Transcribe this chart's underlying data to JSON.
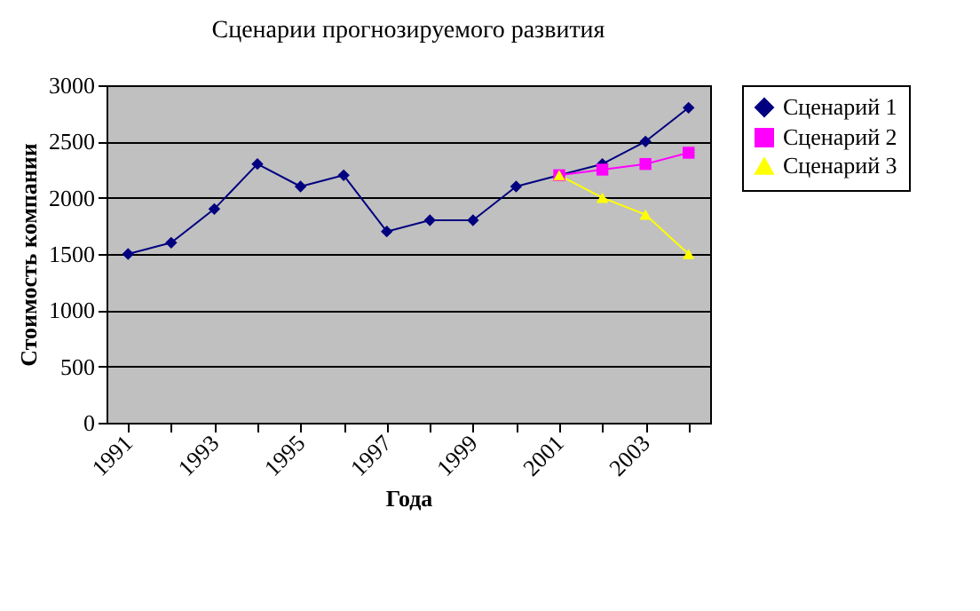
{
  "chart_data": {
    "type": "line",
    "title": "Сценарии прогнозируемого развития",
    "xlabel": "Года",
    "ylabel": "Стоимость компании",
    "categories": [
      "1991",
      null,
      "1993",
      null,
      "1995",
      null,
      "1997",
      null,
      "1999",
      null,
      "2001",
      null,
      "2003",
      null
    ],
    "series": [
      {
        "name": "Сценарий 1",
        "color": "#000080",
        "marker": "diamond",
        "values": [
          1500,
          1600,
          1900,
          2300,
          2100,
          2200,
          1700,
          1800,
          1800,
          2100,
          2200,
          2300,
          2500,
          2800
        ]
      },
      {
        "name": "Сценарий 2",
        "color": "#ff00ff",
        "marker": "square",
        "values": [
          null,
          null,
          null,
          null,
          null,
          null,
          null,
          null,
          null,
          null,
          2200,
          2250,
          2300,
          2400
        ]
      },
      {
        "name": "Сценарий 3",
        "color": "#ffff00",
        "marker": "triangle",
        "values": [
          null,
          null,
          null,
          null,
          null,
          null,
          null,
          null,
          null,
          null,
          2200,
          2000,
          1850,
          1500
        ]
      }
    ],
    "ylim": [
      0,
      3000
    ],
    "yticks": [
      0,
      500,
      1000,
      1500,
      2000,
      2500,
      3000
    ],
    "grid": "y",
    "legend": "right"
  }
}
